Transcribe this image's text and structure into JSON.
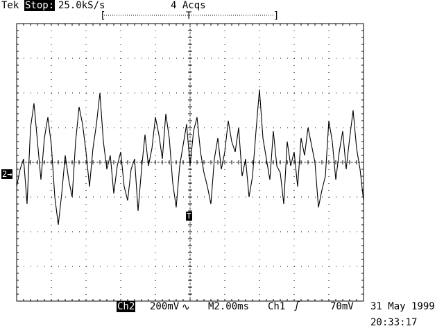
{
  "header": {
    "brand": "Tek",
    "run_state": "Stop:",
    "sample_rate": "25.0kS/s",
    "acquisitions": "4 Acqs",
    "record_left_bracket": "[",
    "record_trigger_marker": "T",
    "record_right_bracket": "]"
  },
  "channel_marker": {
    "label": "2",
    "arrow": "→"
  },
  "trigger_marker": {
    "label": "T"
  },
  "footer": {
    "channel": "Ch2",
    "volts_per_div": "200mV",
    "coupling_symbol": "∿",
    "timebase": "M2.00ms",
    "trigger_source": "Ch1",
    "trigger_slope_symbol": "ʃ",
    "trigger_level": "70mV",
    "date": "31 May 1999",
    "time": "20:33:17"
  },
  "colors": {
    "background": "#ffffff",
    "trace": "#000000",
    "graticule": "#000000"
  },
  "chart_data": {
    "type": "line",
    "x_divisions": 10,
    "y_divisions": 8,
    "xlim": [
      -10,
      10
    ],
    "ylim": [
      -0.8,
      0.8
    ],
    "grid": true,
    "series": [
      {
        "x": [
          -10.0,
          -9.8,
          -9.6,
          -9.4,
          -9.2,
          -9.0,
          -8.8,
          -8.6,
          -8.4,
          -8.2,
          -8.0,
          -7.8,
          -7.6,
          -7.4,
          -7.2,
          -7.0,
          -6.8,
          -6.6,
          -6.4,
          -6.2,
          -6.0,
          -5.8,
          -5.6,
          -5.4,
          -5.2,
          -5.0,
          -4.8,
          -4.6,
          -4.4,
          -4.2,
          -4.0,
          -3.8,
          -3.6,
          -3.4,
          -3.2,
          -3.0,
          -2.8,
          -2.6,
          -2.4,
          -2.2,
          -2.0,
          -1.8,
          -1.6,
          -1.4,
          -1.2,
          -1.0,
          -0.8,
          -0.6,
          -0.4,
          -0.2,
          0.0,
          0.2,
          0.4,
          0.6,
          0.8,
          1.0,
          1.2,
          1.4,
          1.6,
          1.8,
          2.0,
          2.2,
          2.4,
          2.6,
          2.8,
          3.0,
          3.2,
          3.4,
          3.6,
          3.8,
          4.0,
          4.2,
          4.4,
          4.6,
          4.8,
          5.0,
          5.2,
          5.4,
          5.6,
          5.8,
          6.0,
          6.2,
          6.4,
          6.6,
          6.8,
          7.0,
          7.2,
          7.4,
          7.6,
          7.8,
          8.0,
          8.2,
          8.4,
          8.6,
          8.8,
          9.0,
          9.2,
          9.4,
          9.6,
          9.8,
          10.0
        ],
        "y": [
          -0.14,
          -0.04,
          0.02,
          -0.24,
          0.2,
          0.34,
          0.12,
          -0.1,
          0.14,
          0.26,
          0.1,
          -0.2,
          -0.36,
          -0.18,
          0.04,
          -0.1,
          -0.2,
          0.12,
          0.32,
          0.22,
          0.06,
          -0.14,
          0.08,
          0.22,
          0.4,
          0.12,
          -0.04,
          0.04,
          -0.18,
          -0.02,
          0.06,
          -0.14,
          -0.22,
          -0.04,
          0.02,
          -0.28,
          -0.04,
          0.16,
          -0.02,
          0.08,
          0.26,
          0.16,
          0.02,
          0.28,
          0.14,
          -0.12,
          -0.26,
          -0.02,
          0.1,
          0.22,
          -0.02,
          0.18,
          0.26,
          0.06,
          -0.06,
          -0.14,
          -0.24,
          0.02,
          0.14,
          -0.04,
          0.06,
          0.24,
          0.12,
          0.06,
          0.2,
          -0.08,
          0.02,
          -0.2,
          -0.08,
          0.18,
          0.42,
          0.14,
          0.02,
          -0.1,
          0.18,
          -0.02,
          -0.06,
          -0.24,
          0.12,
          -0.02,
          0.06,
          -0.14,
          0.14,
          0.04,
          0.2,
          0.1,
          0.0,
          -0.26,
          -0.16,
          -0.08,
          0.24,
          0.12,
          -0.1,
          0.06,
          0.18,
          -0.04,
          0.14,
          0.3,
          0.08,
          -0.04,
          -0.22
        ]
      }
    ]
  }
}
